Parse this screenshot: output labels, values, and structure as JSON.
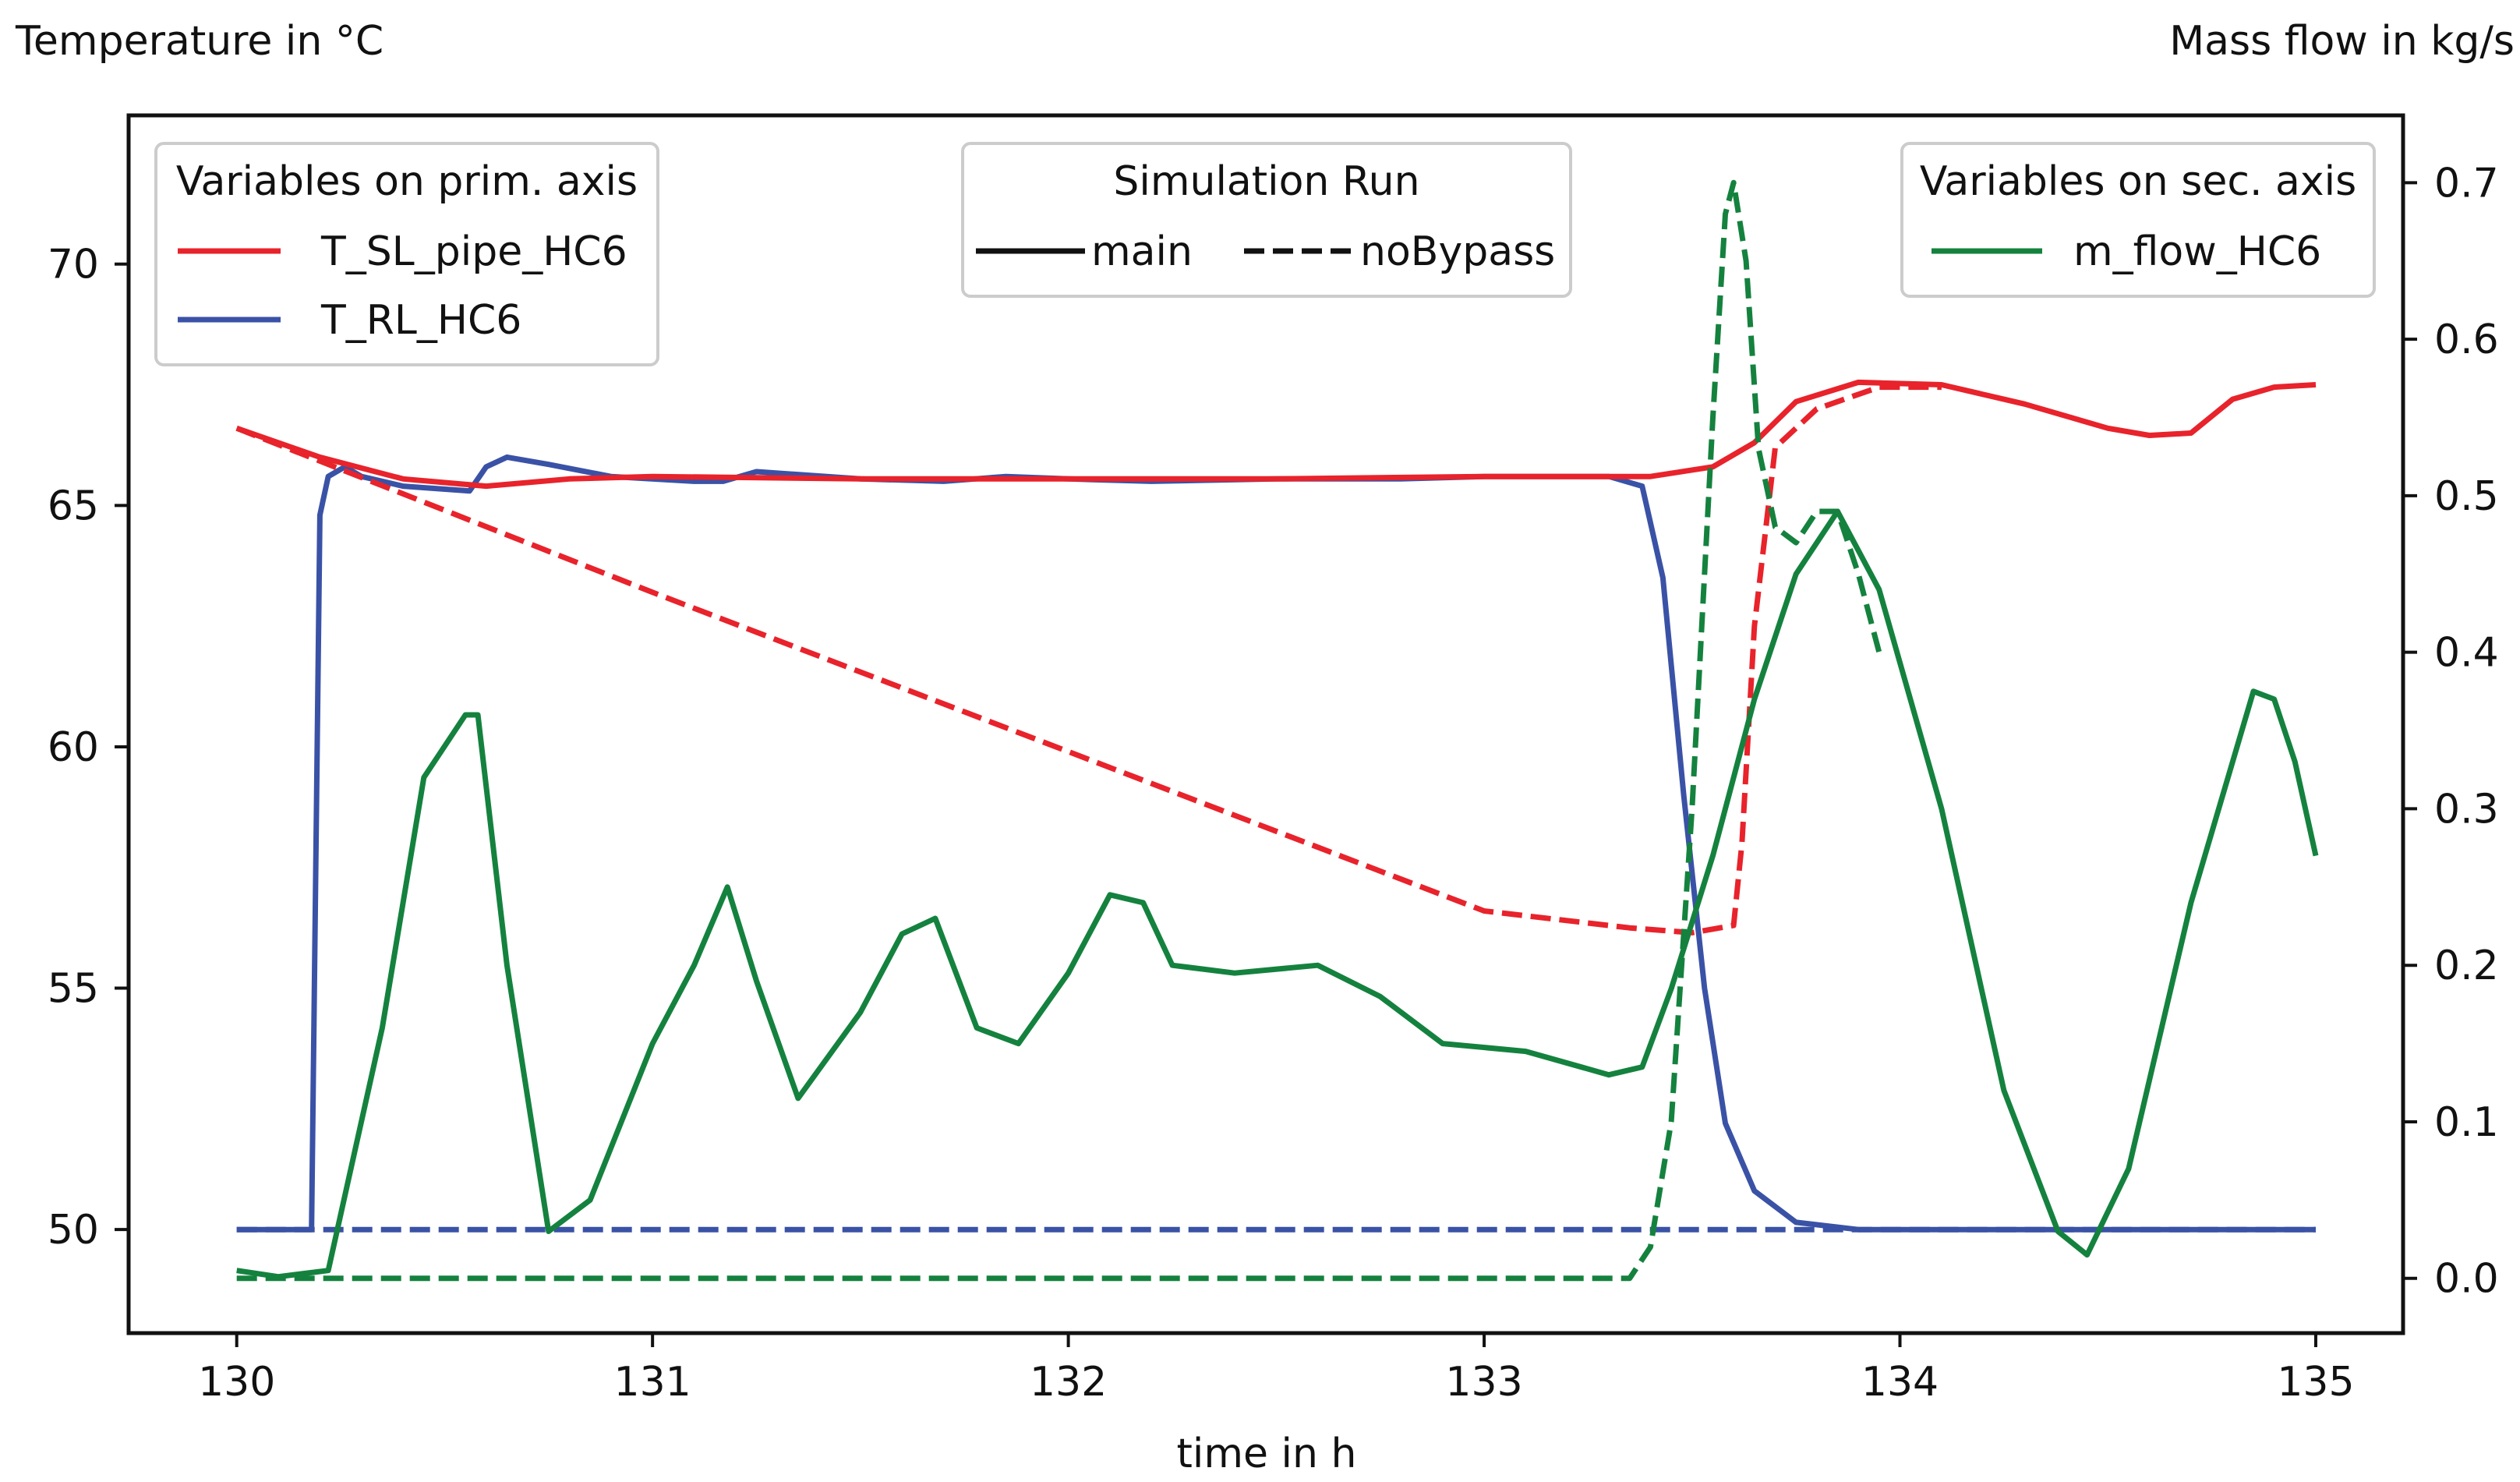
{
  "chart_data": {
    "type": "line",
    "title": "",
    "xlabel": "time in h",
    "ylabel": "Temperature in °C",
    "y2label": "Mass flow in kg/s",
    "xlim": [
      129.74,
      135.21
    ],
    "ylim": [
      47.855,
      73.08
    ],
    "y2lim": [
      -0.035,
      0.743
    ],
    "xticks": [
      130,
      131,
      132,
      133,
      134,
      135
    ],
    "yticks": [
      50,
      55,
      60,
      65,
      70
    ],
    "y2ticks": [
      0.0,
      0.1,
      0.2,
      0.3,
      0.4,
      0.5,
      0.6,
      0.7
    ],
    "xtick_labels": [
      "130",
      "131",
      "132",
      "133",
      "134",
      "135"
    ],
    "ytick_labels": [
      "50",
      "55",
      "60",
      "65",
      "70"
    ],
    "y2tick_labels": [
      "0.0",
      "0.1",
      "0.2",
      "0.3",
      "0.4",
      "0.5",
      "0.6",
      "0.7"
    ],
    "grid": false,
    "legends": {
      "primary": {
        "title": "Variables on prim. axis",
        "placement": "top-left",
        "entries": [
          {
            "label": "T_SL_pipe_HC6",
            "color": "#e8232b"
          },
          {
            "label": "T_RL_HC6",
            "color": "#3a52a6"
          }
        ]
      },
      "runs": {
        "title": "Simulation Run",
        "placement": "top-center",
        "entries": [
          {
            "label": "main",
            "style": "solid"
          },
          {
            "label": "noBypass",
            "style": "dashed"
          }
        ]
      },
      "secondary": {
        "title": "Variables on sec. axis",
        "placement": "top-right",
        "entries": [
          {
            "label": "m_flow_HC6",
            "color": "#14823e"
          }
        ]
      }
    },
    "series": [
      {
        "name": "T_SL_pipe_HC6",
        "run": "main",
        "axis": "primary",
        "color": "#e8232b",
        "style": "solid",
        "x": [
          130.0,
          130.2,
          130.4,
          130.6,
          130.8,
          131.0,
          131.5,
          132.0,
          132.5,
          133.0,
          133.4,
          133.55,
          133.65,
          133.75,
          133.9,
          134.1,
          134.3,
          134.5,
          134.6,
          134.7,
          134.8,
          134.9,
          135.0
        ],
        "y": [
          66.6,
          66.0,
          65.55,
          65.4,
          65.55,
          65.6,
          65.55,
          65.55,
          65.55,
          65.6,
          65.6,
          65.8,
          66.3,
          67.15,
          67.55,
          67.5,
          67.1,
          66.6,
          66.45,
          66.5,
          67.2,
          67.45,
          67.5
        ]
      },
      {
        "name": "T_SL_pipe_HC6",
        "run": "noBypass",
        "axis": "primary",
        "color": "#e8232b",
        "style": "dashed",
        "x": [
          130.0,
          130.5,
          131.0,
          131.5,
          132.0,
          132.5,
          133.0,
          133.35,
          133.5,
          133.6,
          133.62,
          133.65,
          133.7,
          133.8,
          133.95,
          134.1
        ],
        "y": [
          66.6,
          64.9,
          63.2,
          61.55,
          59.9,
          58.25,
          56.6,
          56.25,
          56.15,
          56.3,
          58.0,
          62.5,
          66.2,
          67.0,
          67.45,
          67.45
        ]
      },
      {
        "name": "T_RL_HC6",
        "run": "main",
        "axis": "primary",
        "color": "#3a52a6",
        "style": "solid",
        "x": [
          130.0,
          130.18,
          130.2,
          130.22,
          130.26,
          130.3,
          130.4,
          130.56,
          130.6,
          130.65,
          130.75,
          130.9,
          131.1,
          131.17,
          131.25,
          131.5,
          131.7,
          131.85,
          132.0,
          132.2,
          132.5,
          132.8,
          133.0,
          133.3,
          133.38,
          133.43,
          133.48,
          133.53,
          133.58,
          133.65,
          133.75,
          133.9,
          134.2,
          135.0
        ],
        "y": [
          50.0,
          50.0,
          64.8,
          65.6,
          65.8,
          65.6,
          65.4,
          65.3,
          65.8,
          66.0,
          65.85,
          65.6,
          65.5,
          65.5,
          65.7,
          65.55,
          65.5,
          65.6,
          65.55,
          65.5,
          65.55,
          65.55,
          65.6,
          65.6,
          65.4,
          63.5,
          59.0,
          55.0,
          52.2,
          50.8,
          50.15,
          50.0,
          50.0,
          50.0
        ]
      },
      {
        "name": "T_RL_HC6",
        "run": "noBypass",
        "axis": "primary",
        "color": "#3a52a6",
        "style": "dashed",
        "x": [
          130.0,
          130.5,
          131.0,
          131.5,
          132.0,
          132.5,
          133.0,
          133.5,
          134.0,
          134.5,
          135.0
        ],
        "y": [
          50.0,
          50.0,
          50.0,
          50.0,
          50.0,
          50.0,
          50.0,
          50.0,
          50.0,
          50.0,
          50.0
        ]
      },
      {
        "name": "m_flow_HC6",
        "run": "main",
        "axis": "secondary",
        "color": "#14823e",
        "style": "solid",
        "x": [
          130.0,
          130.1,
          130.22,
          130.35,
          130.45,
          130.55,
          130.58,
          130.65,
          130.75,
          130.85,
          131.0,
          131.1,
          131.18,
          131.25,
          131.35,
          131.5,
          131.6,
          131.68,
          131.78,
          131.88,
          132.0,
          132.1,
          132.18,
          132.25,
          132.4,
          132.6,
          132.75,
          132.9,
          133.1,
          133.3,
          133.38,
          133.45,
          133.55,
          133.65,
          133.75,
          133.85,
          133.95,
          134.1,
          134.25,
          134.38,
          134.45,
          134.55,
          134.7,
          134.8,
          134.85,
          134.9,
          134.95,
          135.0
        ],
        "y": [
          0.005,
          0.001,
          0.005,
          0.16,
          0.32,
          0.36,
          0.36,
          0.2,
          0.03,
          0.05,
          0.15,
          0.2,
          0.25,
          0.19,
          0.115,
          0.17,
          0.22,
          0.23,
          0.16,
          0.15,
          0.195,
          0.245,
          0.24,
          0.2,
          0.195,
          0.2,
          0.18,
          0.15,
          0.145,
          0.13,
          0.135,
          0.185,
          0.27,
          0.37,
          0.45,
          0.49,
          0.44,
          0.3,
          0.12,
          0.03,
          0.015,
          0.07,
          0.24,
          0.33,
          0.375,
          0.37,
          0.33,
          0.27
        ]
      },
      {
        "name": "m_flow_HC6",
        "run": "noBypass",
        "axis": "secondary",
        "color": "#14823e",
        "style": "dashed",
        "x": [
          130.0,
          130.2,
          130.5,
          131.0,
          131.5,
          132.0,
          132.5,
          133.0,
          133.35,
          133.4,
          133.45,
          133.5,
          133.55,
          133.58,
          133.6,
          133.63,
          133.66,
          133.7,
          133.75,
          133.8,
          133.85,
          133.9,
          133.95
        ],
        "y": [
          0.0,
          0.0,
          0.0,
          0.0,
          0.0,
          0.0,
          0.0,
          0.0,
          0.0,
          0.02,
          0.1,
          0.3,
          0.55,
          0.68,
          0.7,
          0.65,
          0.53,
          0.48,
          0.47,
          0.49,
          0.49,
          0.45,
          0.4
        ]
      }
    ]
  }
}
